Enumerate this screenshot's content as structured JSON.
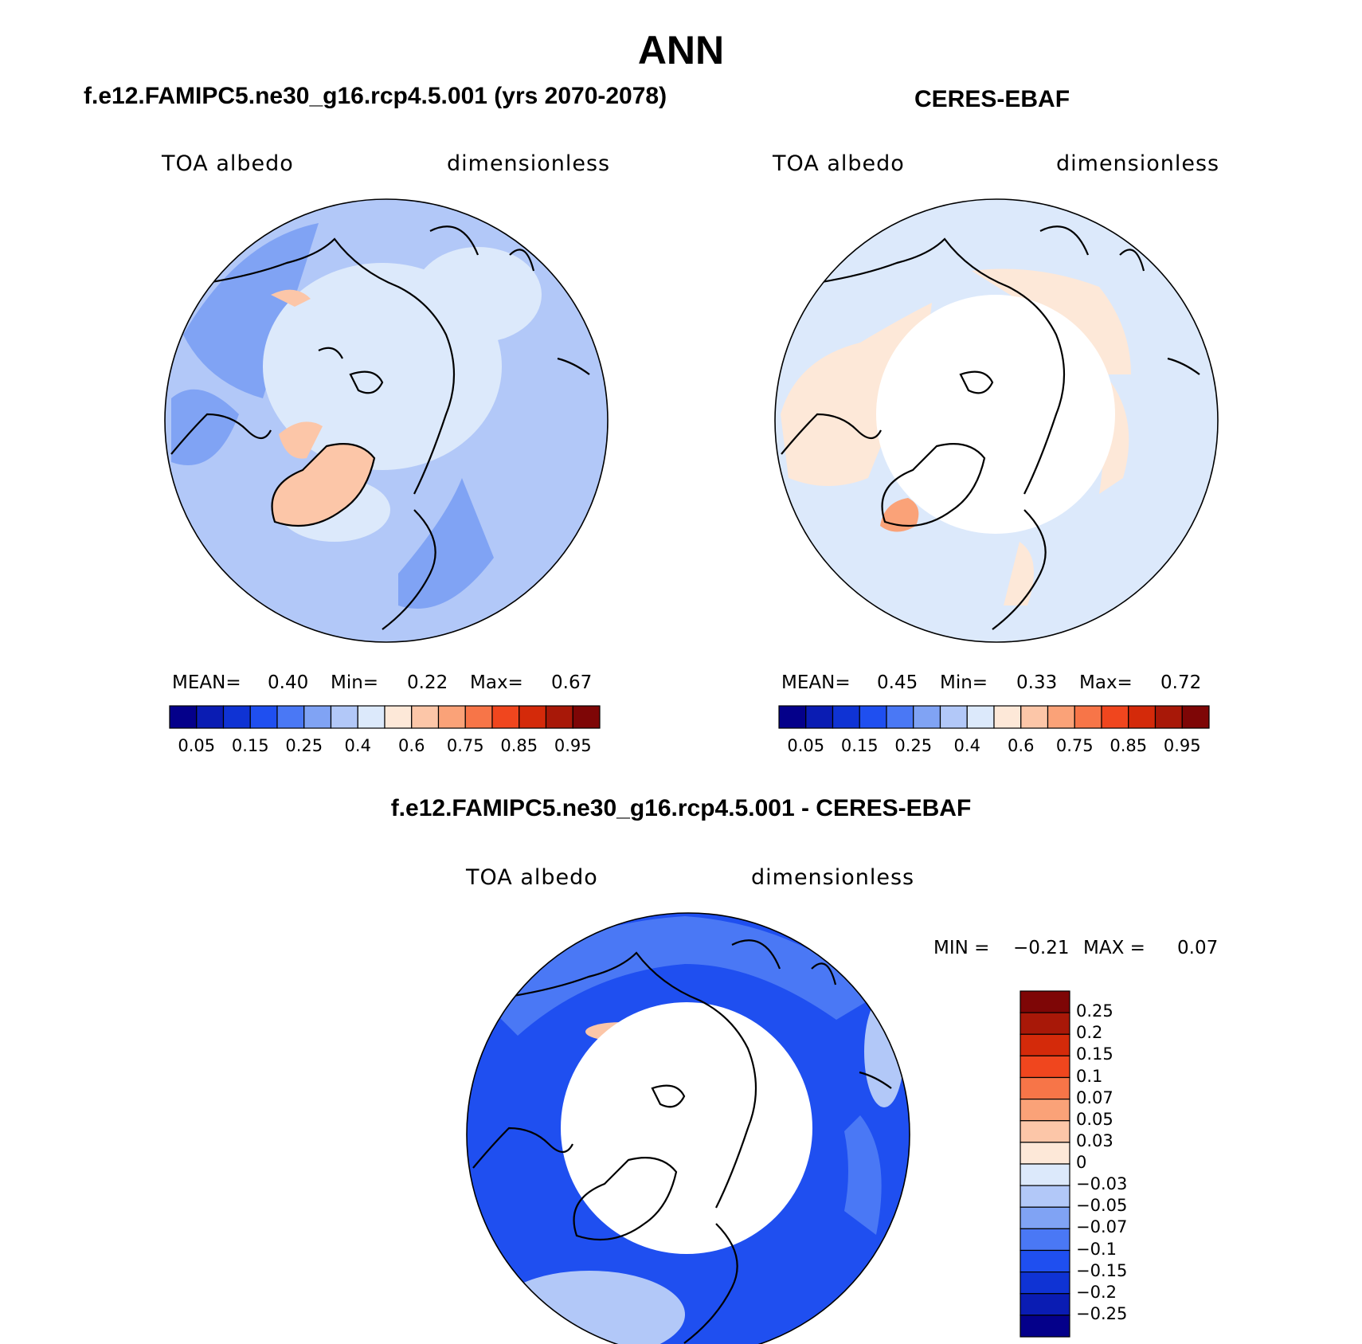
{
  "title": "ANN",
  "panels": {
    "model": {
      "title": "f.e12.FAMIPC5.ne30_g16.rcp4.5.001 (yrs 2070-2078)",
      "variable": "TOA albedo",
      "units": "dimensionless",
      "stats": {
        "mean_label": "MEAN=",
        "mean": "0.40",
        "min_label": "Min=",
        "min": "0.22",
        "max_label": "Max=",
        "max": "0.67"
      }
    },
    "obs": {
      "title": "CERES-EBAF",
      "variable": "TOA albedo",
      "units": "dimensionless",
      "stats": {
        "mean_label": "MEAN=",
        "mean": "0.45",
        "min_label": "Min=",
        "min": "0.33",
        "max_label": "Max=",
        "max": "0.72"
      }
    },
    "diff": {
      "title": "f.e12.FAMIPC5.ne30_g16.rcp4.5.001 - CERES-EBAF",
      "variable": "TOA albedo",
      "units": "dimensionless",
      "stats": {
        "min_label": "MIN =",
        "min": "−0.21",
        "max_label": "MAX =",
        "max": "0.07"
      }
    }
  },
  "colorbar_abs": {
    "tick_labels": [
      "0.05",
      "0.15",
      "0.25",
      "0.4",
      "0.6",
      "0.75",
      "0.85",
      "0.95"
    ],
    "colors": [
      "#04008a",
      "#0a1cb3",
      "#0f33d4",
      "#1f4ff0",
      "#4a78f5",
      "#80a3f4",
      "#b2c8f8",
      "#dce9fb",
      "#fde8d8",
      "#fcc6a8",
      "#faa278",
      "#f77548",
      "#f0461e",
      "#d42a0a",
      "#a81808",
      "#7e0606"
    ]
  },
  "colorbar_diff": {
    "tick_labels": [
      "0.25",
      "0.2",
      "0.15",
      "0.1",
      "0.07",
      "0.05",
      "0.03",
      "0",
      "−0.03",
      "−0.05",
      "−0.07",
      "−0.1",
      "−0.15",
      "−0.2",
      "−0.25"
    ],
    "colors": [
      "#7e0606",
      "#a81808",
      "#d42a0a",
      "#f0461e",
      "#f77548",
      "#faa278",
      "#fcc6a8",
      "#fde8d8",
      "#dce9fb",
      "#b2c8f8",
      "#80a3f4",
      "#4a78f5",
      "#1f4ff0",
      "#0f33d4",
      "#0a1cb3",
      "#04008a"
    ]
  },
  "map_colors": {
    "ocean_model": "#b2c8f8",
    "polar_model": "#dce9fb",
    "greenland_model": "#fcc6a8",
    "ocean_obs": "#dce9fb",
    "land_obs": "#fde8d8",
    "polar_obs": "#ffffff",
    "diff_base": "#1f4ff0",
    "diff_mid": "#4a78f5",
    "diff_light": "#b2c8f8",
    "missing": "#ffffff"
  }
}
